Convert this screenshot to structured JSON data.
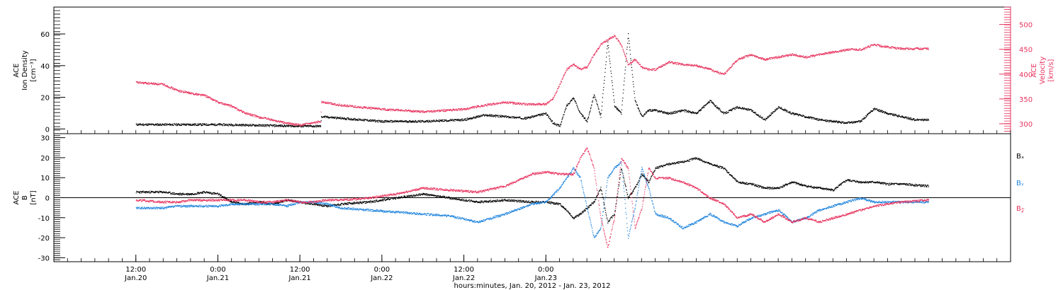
{
  "colors": {
    "black": "#000000",
    "red": "#e8335e",
    "blue": "#1f84dd"
  },
  "chart_data": [
    {
      "type": "scatter",
      "ylabel_left": [
        "ACE",
        "Ion Density",
        "[cm⁻³]"
      ],
      "ylabel_right": [
        "ACE",
        "Velocity",
        "[km/s]"
      ],
      "ylim_left": [
        -3,
        77
      ],
      "ylim_right": [
        280,
        535
      ],
      "yticks_left": [
        0,
        20,
        40,
        60
      ],
      "yticks_right": [
        300,
        350,
        400,
        450,
        500
      ],
      "series": [
        {
          "axis": "left",
          "color": "black",
          "x": [
            0,
            6,
            12,
            18,
            24,
            27,
            27.1,
            30,
            36,
            42,
            48,
            51,
            54,
            57,
            60,
            61,
            62,
            63,
            64,
            65,
            66,
            67,
            68,
            69,
            70,
            71,
            72,
            73,
            74,
            75,
            76,
            78,
            80,
            82,
            84,
            86,
            88,
            90,
            92,
            94,
            96,
            98,
            100,
            102,
            104,
            106,
            108,
            110,
            112,
            114,
            116
          ],
          "y": [
            3,
            3,
            3,
            2.5,
            2,
            2,
            8,
            7,
            5,
            5,
            6,
            9,
            8,
            7,
            10,
            4,
            2,
            15,
            20,
            10,
            5,
            22,
            8,
            55,
            15,
            10,
            60,
            18,
            8,
            12,
            12,
            10,
            12,
            10,
            18,
            10,
            14,
            12,
            6,
            14,
            10,
            8,
            6,
            5,
            4,
            5,
            13,
            10,
            8,
            6,
            6
          ]
        },
        {
          "axis": "right",
          "color": "red",
          "x": [
            0,
            4,
            6,
            8,
            10,
            12,
            14,
            16,
            18,
            20,
            22,
            24,
            26,
            27,
            27.1,
            30,
            36,
            42,
            48,
            51,
            54,
            57,
            60,
            61,
            62,
            63,
            64,
            65,
            66,
            67,
            68,
            69,
            70,
            71,
            72,
            73,
            74,
            75,
            76,
            78,
            80,
            82,
            84,
            86,
            88,
            90,
            92,
            94,
            96,
            98,
            100,
            102,
            104,
            106,
            108,
            110,
            112,
            116
          ],
          "y": [
            384,
            380,
            368,
            362,
            358,
            344,
            336,
            322,
            314,
            308,
            302,
            298,
            302,
            306,
            345,
            338,
            330,
            325,
            330,
            338,
            344,
            340,
            340,
            352,
            380,
            410,
            420,
            410,
            415,
            440,
            460,
            470,
            478,
            460,
            420,
            430,
            415,
            410,
            410,
            425,
            420,
            418,
            410,
            400,
            430,
            440,
            430,
            435,
            440,
            435,
            440,
            445,
            450,
            450,
            460,
            455,
            452,
            452
          ]
        }
      ]
    },
    {
      "type": "scatter",
      "ylabel_left": [
        "ACE",
        "B",
        "[nT]"
      ],
      "ylim": [
        -32,
        32
      ],
      "yticks": [
        -30,
        -20,
        -10,
        0,
        10,
        20,
        30
      ],
      "legend": [
        "Bₓ",
        "Bᵧ",
        "B𝓏"
      ],
      "legend_position": "right",
      "series": [
        {
          "name": "Bₓ",
          "color": "black",
          "x": [
            0,
            4,
            6,
            8,
            10,
            12,
            14,
            16,
            18,
            20,
            22,
            24,
            26,
            28,
            30,
            34,
            38,
            42,
            46,
            50,
            54,
            58,
            60,
            62,
            63,
            64,
            65,
            66,
            67,
            68,
            69,
            70,
            71,
            72,
            73,
            74,
            75,
            76,
            78,
            80,
            82,
            84,
            86,
            88,
            90,
            92,
            94,
            96,
            98,
            100,
            102,
            104,
            106,
            108,
            110,
            112,
            116
          ],
          "y": [
            3,
            3,
            2,
            2,
            3,
            2,
            -2,
            -3,
            -2,
            -3,
            -1,
            -2,
            -3,
            -4,
            -3,
            -2,
            0,
            2,
            0,
            -2,
            -1,
            -2,
            -2,
            -3,
            -6,
            -10,
            -8,
            -5,
            -2,
            5,
            -12,
            -8,
            15,
            0,
            5,
            12,
            8,
            15,
            17,
            18,
            20,
            17,
            15,
            8,
            7,
            5,
            5,
            8,
            6,
            5,
            4,
            9,
            8,
            8,
            7,
            7,
            6
          ]
        },
        {
          "name": "Bᵧ",
          "color": "blue",
          "x": [
            0,
            4,
            6,
            8,
            10,
            12,
            14,
            16,
            18,
            20,
            22,
            24,
            26,
            28,
            30,
            34,
            38,
            42,
            46,
            50,
            54,
            58,
            60,
            62,
            63,
            64,
            65,
            66,
            67,
            68,
            69,
            70,
            71,
            72,
            73,
            74,
            75,
            76,
            78,
            80,
            82,
            84,
            86,
            88,
            90,
            92,
            94,
            96,
            98,
            100,
            102,
            104,
            106,
            108,
            110,
            112,
            116
          ],
          "y": [
            -5,
            -5,
            -4,
            -4,
            -4,
            -4,
            -3,
            -3,
            -3,
            -3,
            -4,
            -2,
            -2,
            -3,
            -5,
            -6,
            -7,
            -8,
            -9,
            -12,
            -8,
            -3,
            -2,
            5,
            10,
            15,
            10,
            -5,
            -20,
            -15,
            10,
            15,
            18,
            -20,
            -5,
            15,
            5,
            -8,
            -10,
            -15,
            -12,
            -8,
            -12,
            -14,
            -10,
            -8,
            -6,
            -12,
            -10,
            -6,
            -4,
            -2,
            0,
            -2,
            -2,
            -2,
            -2
          ]
        },
        {
          "name": "B𝓏",
          "color": "red",
          "x": [
            0,
            4,
            6,
            8,
            10,
            12,
            14,
            16,
            18,
            20,
            22,
            24,
            26,
            28,
            30,
            34,
            38,
            42,
            46,
            50,
            54,
            58,
            60,
            62,
            63,
            64,
            65,
            66,
            67,
            68,
            69,
            70,
            71,
            72,
            73,
            74,
            75,
            76,
            78,
            80,
            82,
            84,
            86,
            88,
            90,
            92,
            94,
            96,
            98,
            100,
            102,
            104,
            106,
            108,
            110,
            112,
            116
          ],
          "y": [
            -1,
            -2,
            -2,
            -1,
            -1,
            -1,
            -1,
            -1,
            -2,
            -2,
            -1,
            -2,
            -2,
            -1,
            -1,
            0,
            2,
            5,
            4,
            3,
            6,
            12,
            13,
            12,
            12,
            12,
            20,
            25,
            15,
            -10,
            -25,
            -10,
            20,
            15,
            -15,
            -5,
            15,
            10,
            10,
            8,
            5,
            0,
            -3,
            -10,
            -8,
            -12,
            -8,
            -12,
            -10,
            -12,
            -10,
            -8,
            -6,
            -4,
            -3,
            -2,
            -1
          ]
        }
      ]
    }
  ],
  "x_axis": {
    "xlim": [
      -12,
      128
    ],
    "ticks": [
      {
        "x": 0,
        "top": "12:00",
        "bottom": "Jan.20"
      },
      {
        "x": 12,
        "top": "0:00",
        "bottom": "Jan.21"
      },
      {
        "x": 24,
        "top": "12:00",
        "bottom": "Jan.21"
      },
      {
        "x": 36,
        "top": "0:00",
        "bottom": "Jan.22"
      },
      {
        "x": 48,
        "top": "12:00",
        "bottom": "Jan.22"
      },
      {
        "x": 60,
        "top": "0:00",
        "bottom": "Jan.23"
      }
    ],
    "label": "hours:minutes, Jan. 20, 2012 - Jan. 23, 2012"
  }
}
